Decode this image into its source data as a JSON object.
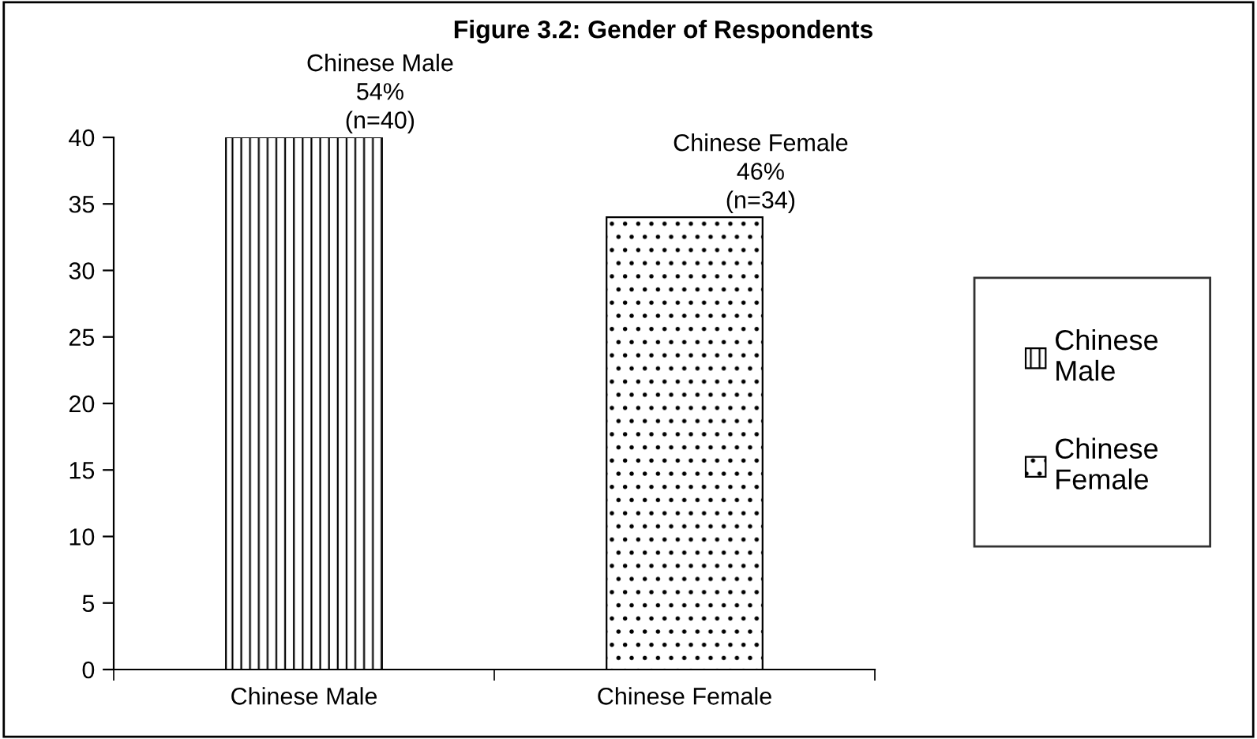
{
  "chart_data": {
    "type": "bar",
    "title": "Figure 3.2: Gender of Respondents",
    "categories": [
      "Chinese Male",
      "Chinese Female"
    ],
    "series": [
      {
        "name": "Chinese Male",
        "color": "#000000",
        "values": [
          40,
          null
        ],
        "value_labels": [
          "Chinese Male\n54%\n(n=40)",
          null
        ]
      },
      {
        "name": "Chinese Female",
        "color": "#000000",
        "values": [
          null,
          34
        ],
        "value_labels": [
          null,
          "Chinese Female\n46%\n(n=34)"
        ]
      }
    ],
    "ylim": [
      0,
      40
    ],
    "yticks": [
      0,
      5,
      10,
      15,
      20,
      25,
      30,
      35,
      40
    ],
    "grid": false,
    "legend": "right"
  }
}
